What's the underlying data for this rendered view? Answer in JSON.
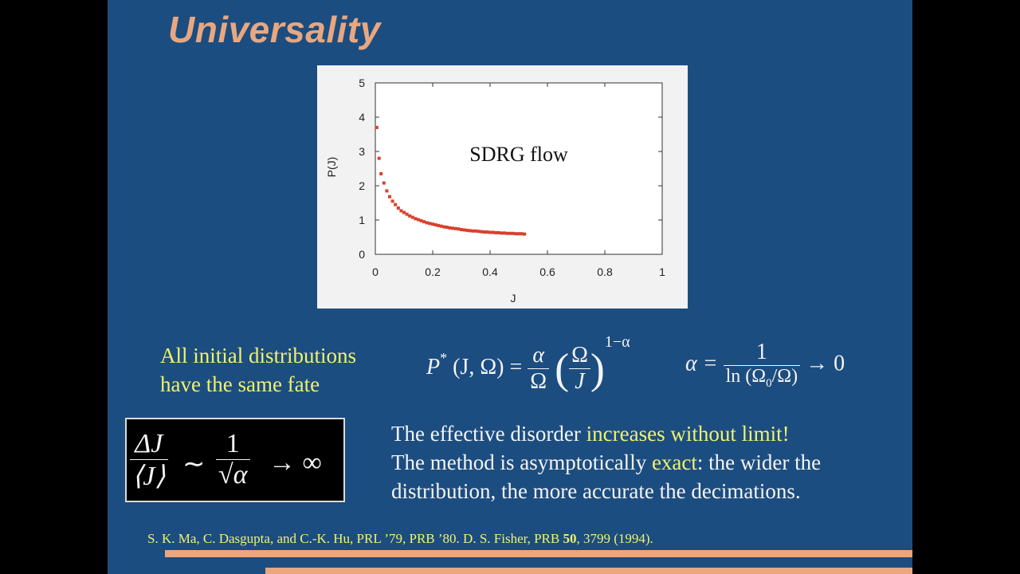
{
  "slide": {
    "title": "Universality",
    "left_note": [
      "All initial distributions",
      "have the same fate"
    ],
    "formula_pstar": {
      "lhs": "P",
      "sup": "*",
      "args": "(J, Ω) =",
      "alpha": "α",
      "omega": "Ω",
      "J": "J",
      "exponent": "1−α"
    },
    "formula_alpha": {
      "lhs": "α =",
      "num": "1",
      "den": "ln (Ω",
      "den_sub": "0",
      "den_tail": "/Ω)",
      "tail": "→ 0"
    },
    "boxed_formula": {
      "num": "ΔJ",
      "den": "⟨J⟩",
      "sim": "∼",
      "one": "1",
      "sqrt": "√",
      "alpha": "α",
      "tail": "→ ∞"
    },
    "right_text": {
      "line1_a": "The effective disorder ",
      "line1_b": "increases without limit!",
      "line2_a": "The method is asymptotically ",
      "line2_b": "exact",
      "line2_c": ": the wider the",
      "line3": "distribution, the more accurate the decimations."
    },
    "citation": {
      "a": "S. K. Ma, C. Dasgupta, and C.-K. Hu, PRL ’79, PRB ’80. D. S. Fisher, PRB ",
      "bold": "50",
      "b": ", 3799 (1994)."
    },
    "colors": {
      "background": "#1c4d80",
      "title": "#e8a780",
      "highlight": "#f1f16e",
      "marker": "#d9402c",
      "panel": "#f2f2f2"
    }
  },
  "chart_data": {
    "type": "scatter",
    "annotation": "SDRG flow",
    "xlabel": "J",
    "ylabel": "P(J)",
    "xlim": [
      0,
      1
    ],
    "ylim": [
      0,
      5
    ],
    "xticks": [
      "0",
      "0.2",
      "0.4",
      "0.6",
      "0.8",
      "1"
    ],
    "yticks": [
      "0",
      "1",
      "2",
      "3",
      "4",
      "5"
    ],
    "grid": false,
    "x": [
      0.005,
      0.013,
      0.02,
      0.03,
      0.04,
      0.05,
      0.06,
      0.07,
      0.08,
      0.09,
      0.1,
      0.11,
      0.12,
      0.13,
      0.14,
      0.15,
      0.16,
      0.17,
      0.18,
      0.19,
      0.2,
      0.21,
      0.22,
      0.23,
      0.24,
      0.25,
      0.26,
      0.27,
      0.28,
      0.29,
      0.3,
      0.31,
      0.32,
      0.33,
      0.34,
      0.35,
      0.36,
      0.37,
      0.38,
      0.39,
      0.4,
      0.41,
      0.42,
      0.43,
      0.44,
      0.45,
      0.46,
      0.47,
      0.48,
      0.49,
      0.5,
      0.51,
      0.52
    ],
    "y": [
      3.7,
      2.8,
      2.35,
      2.08,
      1.85,
      1.68,
      1.55,
      1.45,
      1.35,
      1.27,
      1.22,
      1.17,
      1.12,
      1.08,
      1.04,
      1.01,
      0.98,
      0.95,
      0.92,
      0.9,
      0.88,
      0.86,
      0.84,
      0.82,
      0.8,
      0.79,
      0.77,
      0.76,
      0.75,
      0.74,
      0.72,
      0.71,
      0.7,
      0.69,
      0.68,
      0.68,
      0.67,
      0.66,
      0.65,
      0.65,
      0.64,
      0.64,
      0.63,
      0.63,
      0.62,
      0.62,
      0.61,
      0.61,
      0.61,
      0.6,
      0.6,
      0.6,
      0.59
    ]
  }
}
